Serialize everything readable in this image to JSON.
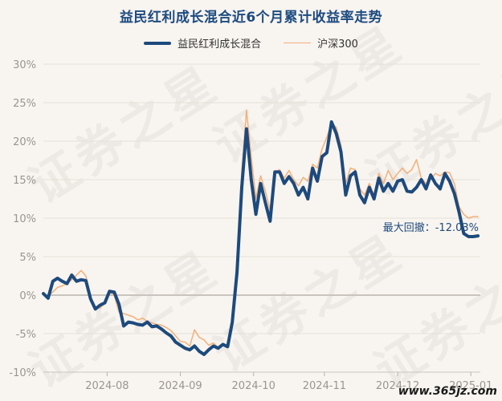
{
  "watermark": "证券之星",
  "site_mark": "www.365jz.com",
  "colors": {
    "fund": "#1d4a7d",
    "index": "#f2b07a",
    "drawdown_fill": "#dbe2e8"
  },
  "chart_data": {
    "type": "line",
    "title": "益民红利成长混合近6个月累计收益率走势",
    "legend_position": "top",
    "y_ticks": [
      "30%",
      "25%",
      "20%",
      "15%",
      "10%",
      "5%",
      "0%",
      "-5%",
      "-10%"
    ],
    "ylim": [
      -10,
      30
    ],
    "x_ticks": [
      "2024-08",
      "2024-09",
      "2024-10",
      "2024-11",
      "2024-12",
      "2025-01"
    ],
    "x_tick_positions": [
      27,
      58,
      89,
      119,
      150,
      181
    ],
    "xlim": [
      0,
      185
    ],
    "grid": "horizontal",
    "annotation": {
      "text": "最大回撤：-12.03%",
      "start_index": 112
    },
    "series": [
      {
        "name": "益民红利成长混合",
        "x": [
          0,
          2,
          4,
          6,
          8,
          10,
          12,
          14,
          16,
          18,
          20,
          22,
          24,
          26,
          28,
          30,
          32,
          34,
          36,
          38,
          40,
          42,
          44,
          46,
          48,
          50,
          52,
          54,
          56,
          58,
          60,
          62,
          64,
          66,
          68,
          70,
          72,
          74,
          76,
          78,
          80,
          82,
          84,
          86,
          88,
          90,
          92,
          94,
          96,
          98,
          100,
          102,
          104,
          106,
          108,
          110,
          112,
          114,
          116,
          118,
          120,
          122,
          124,
          126,
          128,
          130,
          132,
          134,
          136,
          138,
          140,
          142,
          144,
          146,
          148,
          150,
          152,
          154,
          156,
          158,
          160,
          162,
          164,
          166,
          168,
          170,
          172,
          174,
          176,
          178,
          180,
          182,
          184
        ],
        "values": [
          0.2,
          -0.4,
          1.8,
          2.2,
          1.8,
          1.5,
          2.6,
          1.8,
          2.0,
          1.9,
          -0.5,
          -1.8,
          -1.3,
          -1.0,
          0.5,
          0.4,
          -1.2,
          -4.0,
          -3.5,
          -3.6,
          -3.8,
          -3.9,
          -3.5,
          -4.1,
          -4.0,
          -4.4,
          -4.9,
          -5.3,
          -6.1,
          -6.5,
          -6.9,
          -7.1,
          -6.6,
          -7.3,
          -7.7,
          -7.1,
          -6.6,
          -6.9,
          -6.4,
          -6.7,
          -3.5,
          3.0,
          14.0,
          21.6,
          15.0,
          10.5,
          14.5,
          12.0,
          9.6,
          16.0,
          16.0,
          14.5,
          15.4,
          14.5,
          13.0,
          14.0,
          12.5,
          16.5,
          14.8,
          18.0,
          18.5,
          22.5,
          21.0,
          18.6,
          13.0,
          15.5,
          16.0,
          13.0,
          12.0,
          14.0,
          12.5,
          15.2,
          13.5,
          14.5,
          13.5,
          14.8,
          15.0,
          13.5,
          13.4,
          14.0,
          15.0,
          13.8,
          15.6,
          14.5,
          13.8,
          15.8,
          14.8,
          13.2,
          10.8,
          8.0,
          7.6,
          7.6,
          7.7
        ]
      },
      {
        "name": "沪深300",
        "x": [
          0,
          2,
          4,
          6,
          8,
          10,
          12,
          14,
          16,
          18,
          20,
          22,
          24,
          26,
          28,
          30,
          32,
          34,
          36,
          38,
          40,
          42,
          44,
          46,
          48,
          50,
          52,
          54,
          56,
          58,
          60,
          62,
          64,
          66,
          68,
          70,
          72,
          74,
          76,
          78,
          80,
          82,
          84,
          86,
          88,
          90,
          92,
          94,
          96,
          98,
          100,
          102,
          104,
          106,
          108,
          110,
          112,
          114,
          116,
          118,
          120,
          122,
          124,
          126,
          128,
          130,
          132,
          134,
          136,
          138,
          140,
          142,
          144,
          146,
          148,
          150,
          152,
          154,
          156,
          158,
          160,
          162,
          164,
          166,
          168,
          170,
          172,
          174,
          176,
          178,
          180,
          182,
          184
        ],
        "values": [
          0.0,
          -0.1,
          0.4,
          1.0,
          1.2,
          1.5,
          2.0,
          2.6,
          3.2,
          2.5,
          -0.2,
          -1.5,
          -1.7,
          -1.0,
          0.4,
          0.0,
          -2.2,
          -2.4,
          -2.6,
          -2.8,
          -3.2,
          -3.0,
          -3.4,
          -3.6,
          -3.8,
          -3.9,
          -4.2,
          -4.6,
          -5.3,
          -6.0,
          -6.1,
          -6.6,
          -4.5,
          -5.5,
          -5.8,
          -6.5,
          -6.2,
          -6.8,
          -6.4,
          -6.6,
          -4.0,
          3.5,
          16.0,
          24.0,
          18.0,
          12.5,
          15.5,
          13.5,
          11.0,
          16.0,
          16.3,
          15.2,
          16.2,
          15.0,
          14.2,
          15.3,
          14.8,
          17.0,
          16.5,
          19.0,
          20.5,
          22.3,
          21.8,
          19.5,
          14.5,
          16.5,
          16.3,
          13.8,
          13.0,
          14.5,
          13.0,
          15.8,
          14.5,
          16.2,
          15.0,
          15.8,
          16.5,
          15.8,
          16.3,
          17.6,
          15.2,
          14.5,
          15.0,
          15.8,
          15.5,
          16.0,
          15.9,
          14.5,
          11.5,
          10.5,
          10.0,
          10.2,
          10.2
        ]
      }
    ]
  }
}
